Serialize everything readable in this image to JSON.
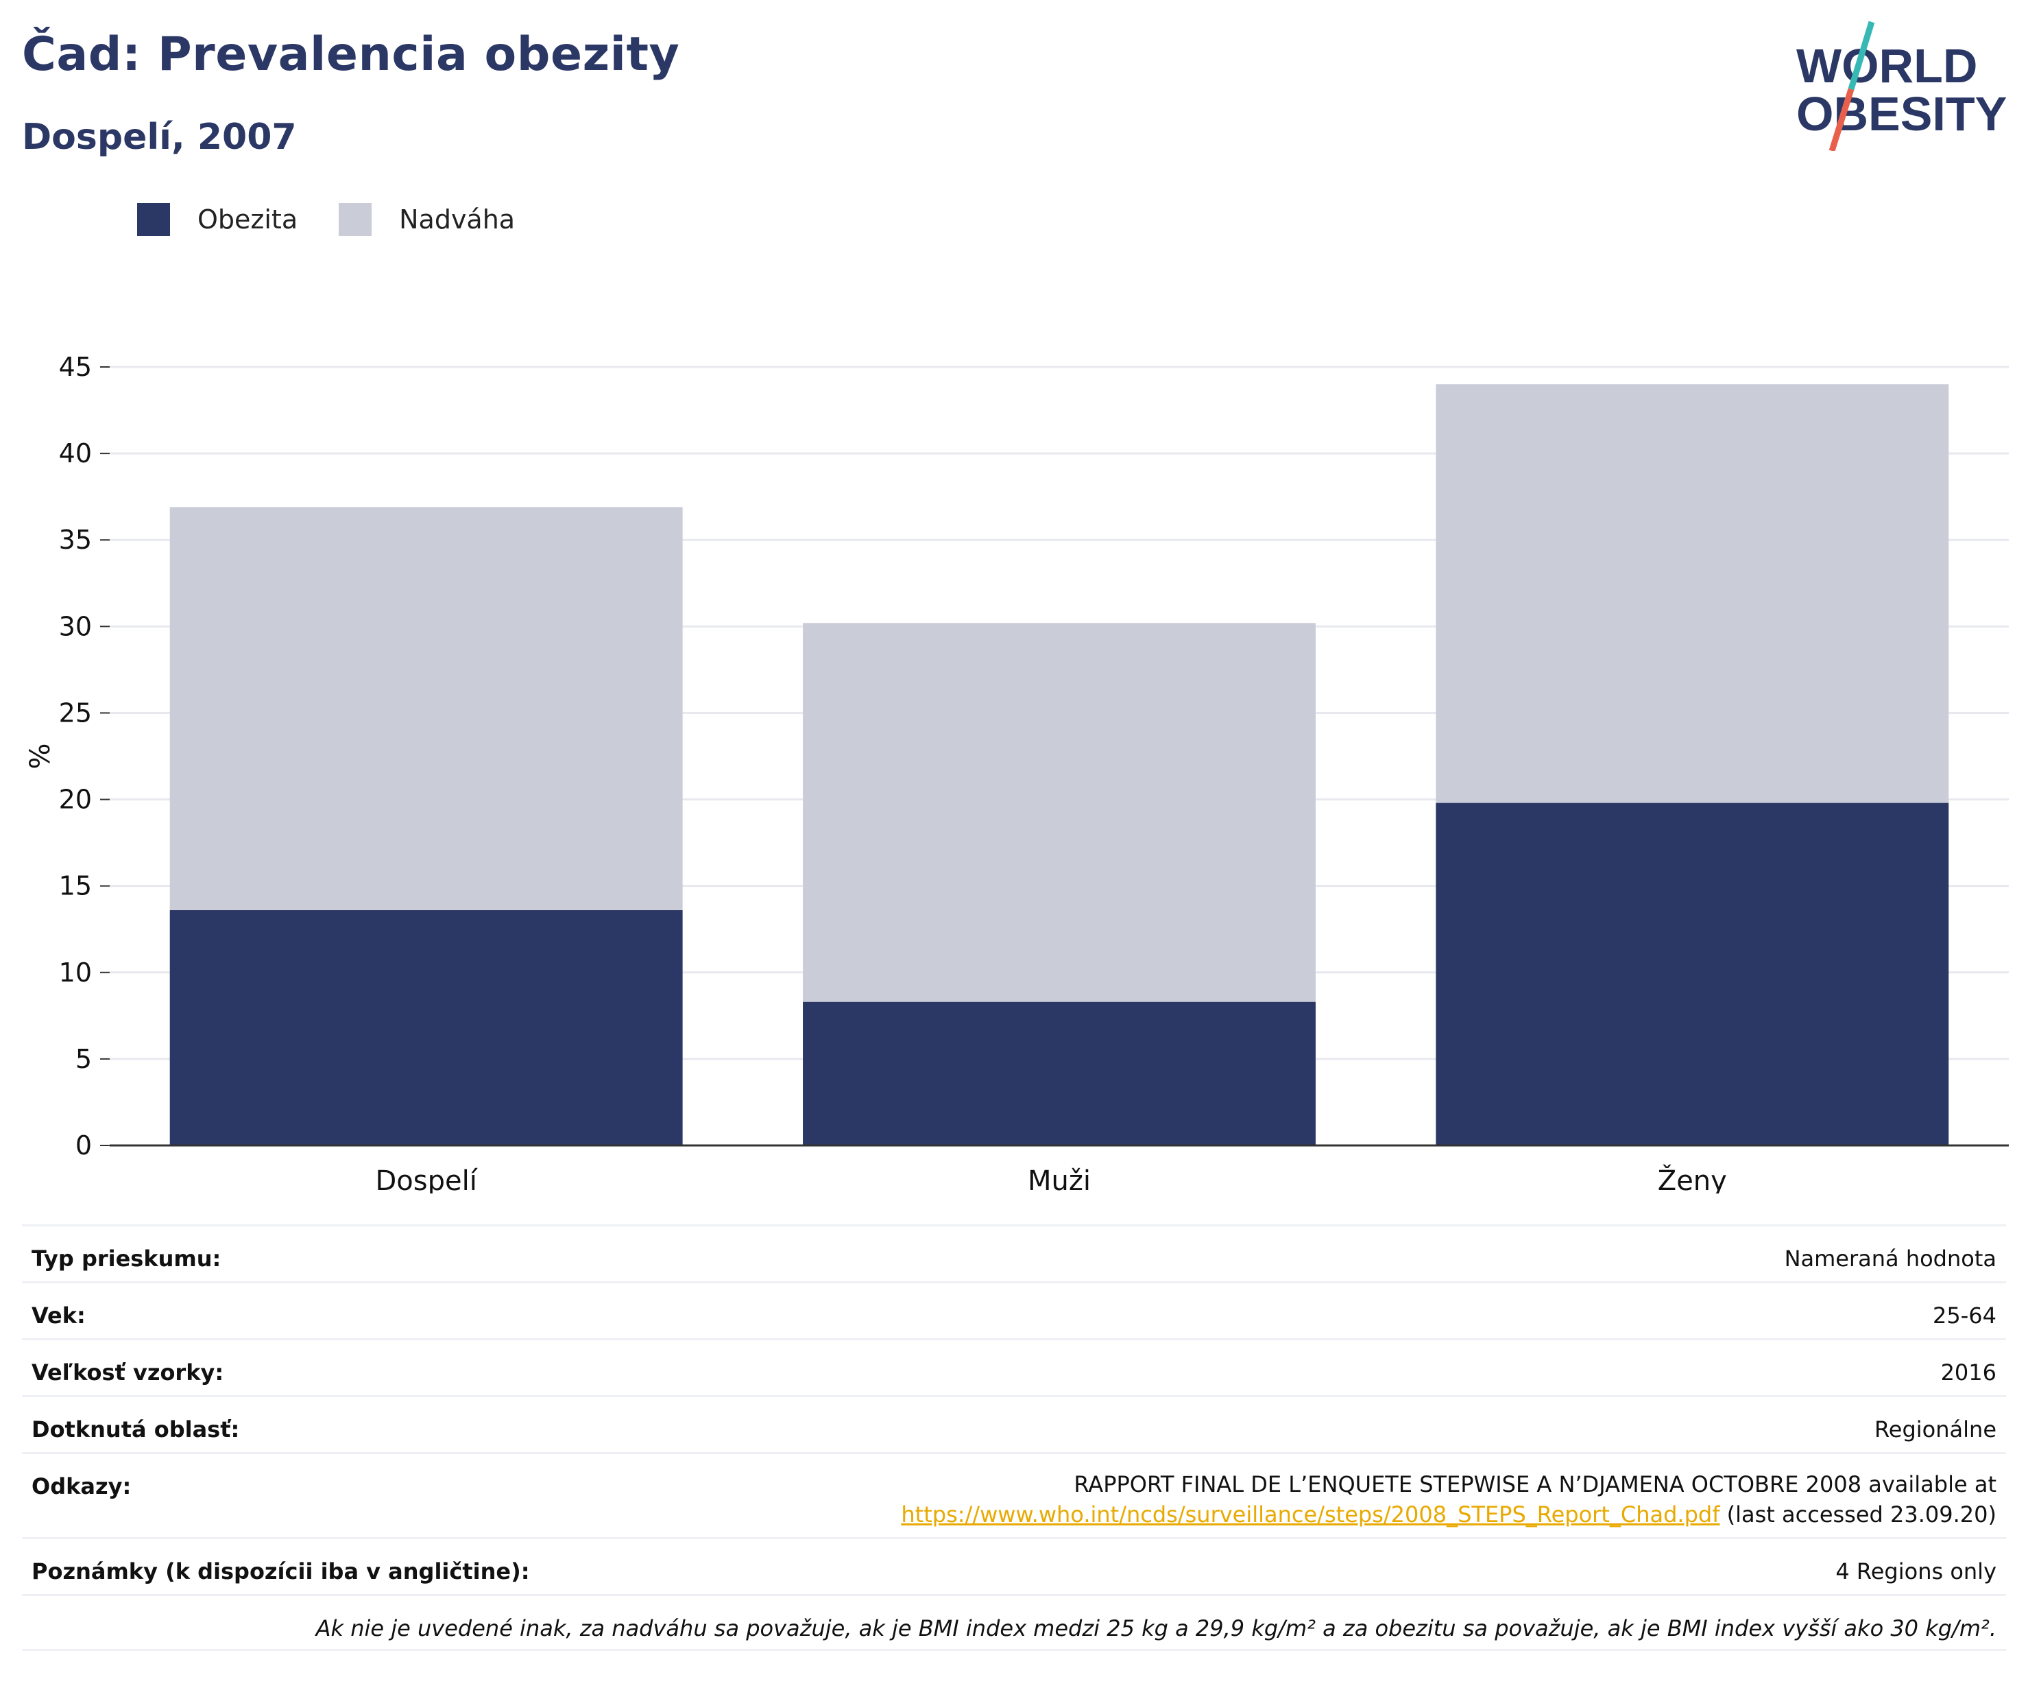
{
  "header": {
    "title": "Čad: Prevalencia obezity",
    "subtitle": "Dospelí, 2007"
  },
  "logo": {
    "line1": "WORLD",
    "line2": "OBESITY",
    "accent_teal": "#36b8b4",
    "accent_coral": "#e8604c"
  },
  "colors": {
    "obesity": "#2b3764",
    "overweight": "#caccd8",
    "axis": "#333333",
    "grid": "#e8e9ef"
  },
  "chart_data": {
    "type": "bar",
    "stacked": true,
    "categories": [
      "Dospelí",
      "Muži",
      "Ženy"
    ],
    "series": [
      {
        "name": "Obezita",
        "values": [
          13.6,
          8.3,
          19.8
        ]
      },
      {
        "name": "Nadváha",
        "values": [
          23.3,
          21.9,
          24.2
        ]
      }
    ],
    "ylabel": "%",
    "ylim": [
      0,
      45
    ],
    "yticks": [
      0,
      5,
      10,
      15,
      20,
      25,
      30,
      35,
      40,
      45
    ],
    "grid": true,
    "legend_position": "top-left"
  },
  "info": {
    "rows": [
      {
        "key": "Typ prieskumu:",
        "value": "Nameraná hodnota"
      },
      {
        "key": "Vek:",
        "value": "25-64"
      },
      {
        "key": "Veľkosť vzorky:",
        "value": "2016"
      },
      {
        "key": "Dotknutá oblasť:",
        "value": "Regionálne"
      }
    ],
    "references": {
      "key": "Odkazy:",
      "line1": "RAPPORT FINAL DE L’ENQUETE STEPWISE A N’DJAMENA OCTOBRE 2008 available at",
      "link": "https://www.who.int/ncds/surveillance/steps/2008_STEPS_Report_Chad.pdf",
      "suffix": " (last accessed 23.09.20)"
    },
    "notes": {
      "key": "Poznámky (k dispozícii iba v angličtine):",
      "value": "4 Regions only"
    },
    "footnote": "Ak nie je uvedené inak, za nadváhu sa považuje, ak je BMI index medzi 25 kg a 29,9 kg/m² a za obezitu sa považuje, ak je BMI index vyšší ako 30 kg/m²."
  }
}
